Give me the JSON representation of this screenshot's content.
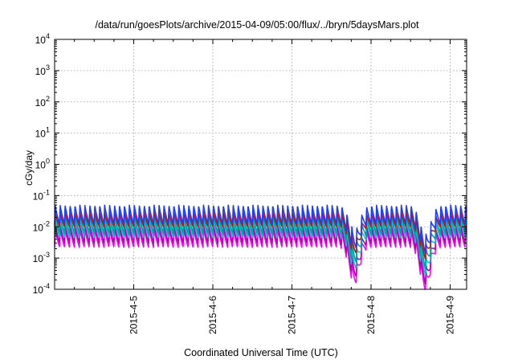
{
  "chart_data": {
    "type": "line",
    "title": "/data/run/goesPlots/archive/2015-04-09/05:00/flux/../bryn/5daysMars.plot",
    "xlabel": "Coordinated Universal Time (UTC)",
    "ylabel": "cGy/day",
    "y_scale": "log",
    "ylim": [
      0.0001,
      10000
    ],
    "y_ticks": [
      {
        "value": 0.0001,
        "base": "10",
        "exp": "-4"
      },
      {
        "value": 0.001,
        "base": "10",
        "exp": "-3"
      },
      {
        "value": 0.01,
        "base": "10",
        "exp": "-2"
      },
      {
        "value": 0.1,
        "base": "10",
        "exp": "-1"
      },
      {
        "value": 1,
        "base": "10",
        "exp": "0"
      },
      {
        "value": 10,
        "base": "10",
        "exp": "1"
      },
      {
        "value": 100,
        "base": "10",
        "exp": "2"
      },
      {
        "value": 1000,
        "base": "10",
        "exp": "3"
      },
      {
        "value": 10000,
        "base": "10",
        "exp": "4"
      }
    ],
    "xlim": [
      "2015-04-04T00:00",
      "2015-04-09T05:00"
    ],
    "x_ticks": [
      {
        "value": "2015-04-05T00:00",
        "label": "2015-4-5"
      },
      {
        "value": "2015-04-06T00:00",
        "label": "2015-4-6"
      },
      {
        "value": "2015-04-07T00:00",
        "label": "2015-4-7"
      },
      {
        "value": "2015-04-08T00:00",
        "label": "2015-4-8"
      },
      {
        "value": "2015-04-09T00:00",
        "label": "2015-4-9"
      }
    ],
    "grid": true,
    "legend": "none",
    "pattern": {
      "period_hours": 1.5,
      "description": "sawtooth orbital modulation: sharp rise then decay each period",
      "dips": [
        {
          "time": "2015-04-07T19:00",
          "depth_decades": 1.2
        },
        {
          "time": "2015-04-08T16:30",
          "depth_decades": 1.4
        }
      ]
    },
    "series": [
      {
        "color": "#1f3bff",
        "peak": 0.05,
        "trough": 0.012
      },
      {
        "color": "#cc1111",
        "peak": 0.03,
        "trough": 0.01
      },
      {
        "color": "#00a0a0",
        "peak": 0.028,
        "trough": 0.006
      },
      {
        "color": "#00c8c8",
        "peak": 0.018,
        "trough": 0.0045
      },
      {
        "color": "#b000b0",
        "peak": 0.012,
        "trough": 0.003
      },
      {
        "color": "#ff00ff",
        "peak": 0.009,
        "trough": 0.0022
      }
    ]
  }
}
